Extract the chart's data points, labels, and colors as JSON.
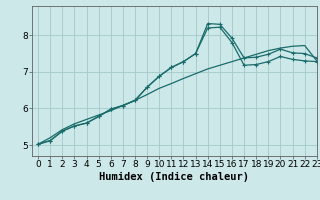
{
  "title": "",
  "xlabel": "Humidex (Indice chaleur)",
  "background_color": "#cce8e8",
  "grid_color": "#a8cccc",
  "line_color": "#1a6b6b",
  "xlim": [
    -0.5,
    23
  ],
  "ylim": [
    4.7,
    8.8
  ],
  "x": [
    0,
    1,
    2,
    3,
    4,
    5,
    6,
    7,
    8,
    9,
    10,
    11,
    12,
    13,
    14,
    15,
    16,
    17,
    18,
    19,
    20,
    21,
    22,
    23
  ],
  "line1": [
    5.02,
    5.12,
    5.38,
    5.52,
    5.6,
    5.78,
    5.98,
    6.08,
    6.22,
    6.58,
    6.88,
    7.12,
    7.28,
    7.5,
    8.32,
    8.3,
    7.92,
    7.38,
    7.4,
    7.48,
    7.62,
    7.52,
    7.5,
    7.38
  ],
  "line2": [
    5.02,
    5.12,
    5.38,
    5.52,
    5.6,
    5.78,
    5.98,
    6.08,
    6.22,
    6.58,
    6.88,
    7.12,
    7.28,
    7.5,
    8.2,
    8.22,
    7.8,
    7.18,
    7.2,
    7.28,
    7.42,
    7.34,
    7.3,
    7.28
  ],
  "line3": [
    5.02,
    5.2,
    5.42,
    5.58,
    5.7,
    5.82,
    5.94,
    6.08,
    6.22,
    6.38,
    6.55,
    6.68,
    6.82,
    6.95,
    7.08,
    7.18,
    7.28,
    7.38,
    7.48,
    7.58,
    7.65,
    7.7,
    7.72,
    7.3
  ],
  "xticks": [
    0,
    1,
    2,
    3,
    4,
    5,
    6,
    7,
    8,
    9,
    10,
    11,
    12,
    13,
    14,
    15,
    16,
    17,
    18,
    19,
    20,
    21,
    22,
    23
  ],
  "yticks": [
    5,
    6,
    7,
    8
  ],
  "tick_fontsize": 6.5,
  "label_fontsize": 7.5
}
